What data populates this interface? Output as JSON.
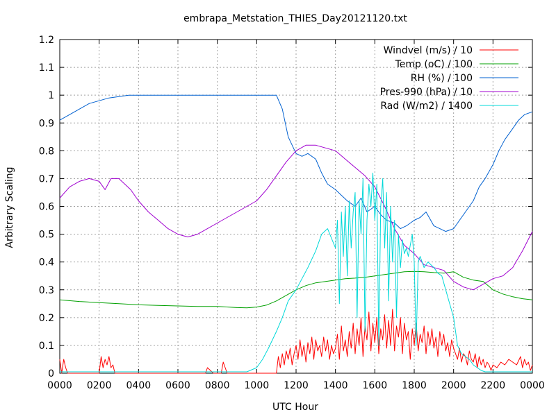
{
  "chart_data": {
    "type": "line",
    "title": "embrapa_Metstation_THIES_Day20121120.txt",
    "xlabel": "UTC Hour",
    "ylabel": "Arbitrary Scaling",
    "xlim": [
      0,
      24
    ],
    "ylim": [
      0,
      1.2
    ],
    "grid": true,
    "legend_position": "top-right",
    "x_ticks": [
      {
        "value": 0,
        "label": "0000"
      },
      {
        "value": 2,
        "label": "0200"
      },
      {
        "value": 4,
        "label": "0400"
      },
      {
        "value": 6,
        "label": "0600"
      },
      {
        "value": 8,
        "label": "0800"
      },
      {
        "value": 10,
        "label": "1000"
      },
      {
        "value": 12,
        "label": "1200"
      },
      {
        "value": 14,
        "label": "1400"
      },
      {
        "value": 16,
        "label": "1600"
      },
      {
        "value": 18,
        "label": "1800"
      },
      {
        "value": 20,
        "label": "2000"
      },
      {
        "value": 22,
        "label": "2200"
      },
      {
        "value": 24,
        "label": "0000"
      }
    ],
    "y_ticks": [
      {
        "value": 0,
        "label": "0"
      },
      {
        "value": 0.1,
        "label": "0.1"
      },
      {
        "value": 0.2,
        "label": "0.2"
      },
      {
        "value": 0.3,
        "label": "0.3"
      },
      {
        "value": 0.4,
        "label": "0.4"
      },
      {
        "value": 0.5,
        "label": "0.5"
      },
      {
        "value": 0.6,
        "label": "0.6"
      },
      {
        "value": 0.7,
        "label": "0.7"
      },
      {
        "value": 0.8,
        "label": "0.8"
      },
      {
        "value": 0.9,
        "label": "0.9"
      },
      {
        "value": 1,
        "label": "1"
      },
      {
        "value": 1.1,
        "label": "1.1"
      },
      {
        "value": 1.2,
        "label": "1.2"
      }
    ],
    "series": [
      {
        "name": "Windvel (m/s) / 10",
        "color": "#ff0000",
        "x": [
          0.0,
          0.1,
          0.2,
          0.3,
          0.4,
          0.8,
          1.6,
          2.0,
          2.1,
          2.2,
          2.3,
          2.4,
          2.5,
          2.6,
          2.7,
          2.8,
          3.0,
          3.6,
          4.2,
          6.0,
          7.4,
          7.5,
          7.8,
          8.0,
          8.2,
          8.3,
          8.4,
          8.5,
          9.0,
          10.0,
          11.0,
          11.1,
          11.2,
          11.3,
          11.4,
          11.5,
          11.6,
          11.7,
          11.8,
          11.9,
          12.0,
          12.1,
          12.2,
          12.3,
          12.4,
          12.5,
          12.6,
          12.7,
          12.8,
          12.9,
          13.0,
          13.1,
          13.2,
          13.3,
          13.4,
          13.5,
          13.6,
          13.7,
          13.8,
          13.9,
          14.0,
          14.1,
          14.2,
          14.3,
          14.4,
          14.5,
          14.6,
          14.7,
          14.8,
          14.9,
          15.0,
          15.1,
          15.2,
          15.3,
          15.4,
          15.5,
          15.6,
          15.7,
          15.8,
          15.9,
          16.0,
          16.1,
          16.2,
          16.3,
          16.4,
          16.5,
          16.6,
          16.7,
          16.8,
          16.9,
          17.0,
          17.1,
          17.2,
          17.3,
          17.4,
          17.5,
          17.6,
          17.7,
          17.8,
          17.9,
          18.0,
          18.1,
          18.2,
          18.3,
          18.4,
          18.5,
          18.6,
          18.7,
          18.8,
          18.9,
          19.0,
          19.1,
          19.2,
          19.3,
          19.4,
          19.5,
          19.6,
          19.7,
          19.8,
          19.9,
          20.0,
          20.1,
          20.2,
          20.3,
          20.4,
          20.5,
          20.6,
          20.7,
          20.8,
          20.9,
          21.0,
          21.1,
          21.2,
          21.3,
          21.4,
          21.5,
          21.6,
          21.7,
          21.8,
          21.9,
          22.0,
          22.2,
          22.4,
          22.6,
          22.8,
          23.0,
          23.2,
          23.4,
          23.5,
          23.6,
          23.7,
          23.8,
          23.9,
          24.0
        ],
        "values": [
          0.05,
          0.0,
          0.05,
          0.02,
          0.0,
          0.0,
          0.0,
          0.0,
          0.06,
          0.02,
          0.05,
          0.03,
          0.06,
          0.02,
          0.03,
          0.0,
          0.0,
          0.0,
          0.0,
          0.0,
          0.0,
          0.02,
          0.0,
          0.0,
          0.0,
          0.04,
          0.02,
          0.0,
          0.0,
          0.0,
          0.0,
          0.06,
          0.02,
          0.07,
          0.03,
          0.08,
          0.05,
          0.09,
          0.03,
          0.07,
          0.1,
          0.05,
          0.12,
          0.06,
          0.1,
          0.04,
          0.11,
          0.07,
          0.13,
          0.05,
          0.12,
          0.08,
          0.1,
          0.06,
          0.13,
          0.08,
          0.12,
          0.05,
          0.1,
          0.07,
          0.09,
          0.14,
          0.05,
          0.17,
          0.08,
          0.12,
          0.06,
          0.15,
          0.09,
          0.18,
          0.07,
          0.16,
          0.1,
          0.2,
          0.06,
          0.17,
          0.12,
          0.22,
          0.08,
          0.18,
          0.11,
          0.2,
          0.07,
          0.16,
          0.12,
          0.21,
          0.09,
          0.19,
          0.1,
          0.23,
          0.08,
          0.17,
          0.13,
          0.2,
          0.07,
          0.18,
          0.12,
          0.15,
          0.05,
          0.16,
          0.1,
          0.18,
          0.08,
          0.14,
          0.11,
          0.17,
          0.07,
          0.15,
          0.1,
          0.16,
          0.09,
          0.13,
          0.06,
          0.15,
          0.1,
          0.14,
          0.08,
          0.11,
          0.06,
          0.12,
          0.09,
          0.07,
          0.05,
          0.09,
          0.04,
          0.07,
          0.06,
          0.03,
          0.08,
          0.05,
          0.04,
          0.07,
          0.02,
          0.06,
          0.03,
          0.05,
          0.02,
          0.04,
          0.03,
          0.01,
          0.03,
          0.02,
          0.04,
          0.03,
          0.05,
          0.04,
          0.03,
          0.06,
          0.02,
          0.05,
          0.03,
          0.04,
          0.01,
          0.03
        ]
      },
      {
        "name": "Temp (oC) / 100",
        "color": "#00a000",
        "x": [
          0,
          1,
          2,
          3,
          4,
          5,
          6,
          7,
          8,
          9,
          9.5,
          10,
          10.5,
          11,
          11.5,
          12,
          12.5,
          13,
          13.5,
          14,
          14.5,
          15,
          15.5,
          16,
          16.5,
          17,
          17.5,
          18,
          18.5,
          19,
          19.5,
          20,
          20.5,
          21,
          21.5,
          22,
          22.5,
          23,
          23.5,
          24
        ],
        "values": [
          0.264,
          0.258,
          0.254,
          0.25,
          0.246,
          0.244,
          0.242,
          0.24,
          0.24,
          0.236,
          0.235,
          0.238,
          0.245,
          0.26,
          0.28,
          0.3,
          0.315,
          0.325,
          0.33,
          0.335,
          0.34,
          0.342,
          0.345,
          0.35,
          0.355,
          0.36,
          0.365,
          0.366,
          0.365,
          0.362,
          0.36,
          0.365,
          0.345,
          0.335,
          0.33,
          0.3,
          0.285,
          0.275,
          0.268,
          0.264
        ]
      },
      {
        "name": "RH (%) / 100",
        "color": "#0060d0",
        "x": [
          0,
          0.5,
          1,
          1.5,
          2,
          2.5,
          3,
          3.5,
          4,
          5,
          6,
          7,
          8,
          9,
          10,
          11,
          11.3,
          11.6,
          12,
          12.3,
          12.6,
          13,
          13.3,
          13.6,
          14,
          14.3,
          14.6,
          15,
          15.3,
          15.6,
          16,
          16.3,
          16.6,
          17,
          17.3,
          17.6,
          18,
          18.3,
          18.6,
          19,
          19.3,
          19.6,
          20,
          20.3,
          20.6,
          21,
          21.3,
          21.6,
          22,
          22.3,
          22.6,
          23,
          23.3,
          23.6,
          24
        ],
        "values": [
          0.91,
          0.93,
          0.95,
          0.97,
          0.98,
          0.99,
          0.995,
          1.0,
          1.0,
          1.0,
          1.0,
          1.0,
          1.0,
          1.0,
          1.0,
          1.0,
          0.95,
          0.85,
          0.79,
          0.78,
          0.79,
          0.77,
          0.72,
          0.68,
          0.66,
          0.64,
          0.62,
          0.6,
          0.63,
          0.58,
          0.6,
          0.57,
          0.55,
          0.54,
          0.52,
          0.53,
          0.55,
          0.56,
          0.58,
          0.53,
          0.52,
          0.51,
          0.52,
          0.55,
          0.58,
          0.62,
          0.67,
          0.7,
          0.75,
          0.8,
          0.84,
          0.88,
          0.91,
          0.93,
          0.94
        ]
      },
      {
        "name": "Pres-990 (hPa) / 10",
        "color": "#a000d0",
        "x": [
          0,
          0.5,
          1,
          1.5,
          2,
          2.3,
          2.6,
          3,
          3.3,
          3.6,
          4,
          4.5,
          5,
          5.5,
          6,
          6.5,
          7,
          7.5,
          8,
          8.5,
          9,
          9.5,
          10,
          10.5,
          11,
          11.5,
          12,
          12.5,
          13,
          13.5,
          14,
          14.5,
          15,
          15.5,
          16,
          16.5,
          17,
          17.5,
          18,
          18.5,
          19,
          19.5,
          20,
          20.5,
          21,
          21.5,
          22,
          22.5,
          23,
          23.5,
          24
        ],
        "values": [
          0.63,
          0.67,
          0.69,
          0.7,
          0.69,
          0.66,
          0.7,
          0.7,
          0.68,
          0.66,
          0.62,
          0.58,
          0.55,
          0.52,
          0.5,
          0.49,
          0.5,
          0.52,
          0.54,
          0.56,
          0.58,
          0.6,
          0.62,
          0.66,
          0.71,
          0.76,
          0.8,
          0.82,
          0.82,
          0.81,
          0.8,
          0.77,
          0.74,
          0.71,
          0.67,
          0.6,
          0.52,
          0.46,
          0.43,
          0.39,
          0.38,
          0.37,
          0.33,
          0.31,
          0.3,
          0.32,
          0.34,
          0.35,
          0.38,
          0.44,
          0.51
        ]
      },
      {
        "name": "Rad (W/m2) / 1400",
        "color": "#00d8d8",
        "x": [
          0,
          3,
          6,
          9,
          9.5,
          10,
          10.3,
          10.6,
          11,
          11.3,
          11.6,
          12,
          12.3,
          12.6,
          13,
          13.3,
          13.6,
          14,
          14.1,
          14.2,
          14.3,
          14.4,
          14.5,
          14.6,
          14.7,
          14.8,
          14.9,
          15,
          15.1,
          15.2,
          15.3,
          15.4,
          15.5,
          15.6,
          15.7,
          15.8,
          15.9,
          16,
          16.1,
          16.2,
          16.3,
          16.4,
          16.5,
          16.6,
          16.7,
          16.8,
          16.9,
          17,
          17.1,
          17.2,
          17.3,
          17.4,
          17.5,
          17.6,
          17.7,
          17.8,
          17.9,
          18,
          18.1,
          18.2,
          18.3,
          18.5,
          18.7,
          19,
          19.2,
          19.4,
          19.6,
          19.8,
          20,
          20.2,
          20.4,
          20.6,
          20.8,
          21,
          21.2,
          21.4,
          21.6,
          24
        ],
        "values": [
          0.005,
          0.005,
          0.005,
          0.005,
          0.005,
          0.02,
          0.05,
          0.09,
          0.15,
          0.2,
          0.26,
          0.3,
          0.34,
          0.38,
          0.44,
          0.5,
          0.52,
          0.45,
          0.55,
          0.25,
          0.58,
          0.42,
          0.6,
          0.35,
          0.62,
          0.45,
          0.58,
          0.65,
          0.2,
          0.62,
          0.5,
          0.7,
          0.15,
          0.55,
          0.68,
          0.6,
          0.72,
          0.55,
          0.68,
          0.1,
          0.6,
          0.7,
          0.45,
          0.65,
          0.26,
          0.6,
          0.4,
          0.55,
          0.2,
          0.5,
          0.38,
          0.48,
          0.43,
          0.45,
          0.42,
          0.46,
          0.5,
          0.4,
          0.1,
          0.4,
          0.42,
          0.38,
          0.4,
          0.38,
          0.36,
          0.35,
          0.3,
          0.25,
          0.2,
          0.1,
          0.07,
          0.06,
          0.05,
          0.03,
          0.02,
          0.01,
          0.005,
          0.005
        ]
      }
    ]
  }
}
